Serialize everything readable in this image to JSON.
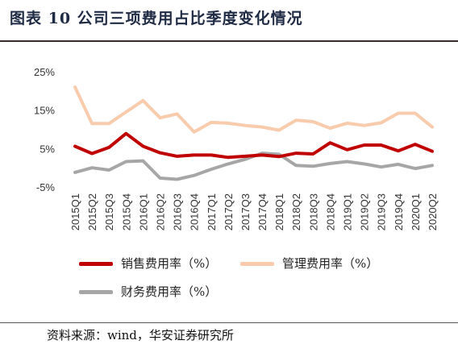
{
  "title": "图表 10 公司三项费用占比季度变化情况",
  "source": "资料来源：wind，华安证券研究所",
  "chart_data": {
    "type": "line",
    "x": [
      "2015Q1",
      "2015Q2",
      "2015Q3",
      "2015Q4",
      "2016Q1",
      "2016Q2",
      "2016Q3",
      "2016Q4",
      "2017Q1",
      "2017Q2",
      "2017Q3",
      "2017Q4",
      "2018Q1",
      "2018Q2",
      "2018Q3",
      "2018Q4",
      "2019Q1",
      "2019Q2",
      "2019Q3",
      "2019Q4",
      "2020Q1",
      "2020Q2"
    ],
    "ylim": [
      -5,
      25
    ],
    "yticks": [
      -5,
      5,
      15,
      25
    ],
    "ytick_labels": [
      "-5%",
      "5%",
      "15%",
      "25%"
    ],
    "grid": false,
    "legend_position": "bottom",
    "series": [
      {
        "name": "销售费用率（%）",
        "color": "#c00000",
        "values": [
          5.6,
          3.7,
          5.3,
          8.9,
          5.6,
          3.9,
          3.0,
          3.3,
          3.3,
          2.7,
          3.0,
          3.3,
          2.9,
          3.8,
          3.6,
          6.5,
          4.7,
          5.9,
          5.9,
          4.4,
          6.1,
          4.3
        ]
      },
      {
        "name": "管理费用率（%）",
        "color": "#f8cbad",
        "values": [
          21.0,
          11.5,
          11.5,
          14.5,
          17.5,
          13.0,
          14.0,
          9.3,
          11.8,
          11.6,
          11.0,
          10.6,
          9.8,
          12.4,
          12.0,
          10.3,
          11.6,
          11.0,
          11.7,
          14.2,
          14.2,
          10.6
        ]
      },
      {
        "name": "财务费用率（%）",
        "color": "#a6a6a6",
        "values": [
          -1.2,
          0.0,
          -0.6,
          1.6,
          1.8,
          -2.7,
          -3.0,
          -2.0,
          -0.4,
          1.0,
          2.2,
          3.8,
          3.5,
          0.6,
          0.4,
          1.1,
          1.6,
          1.0,
          0.2,
          0.9,
          -0.2,
          0.6
        ]
      }
    ]
  }
}
